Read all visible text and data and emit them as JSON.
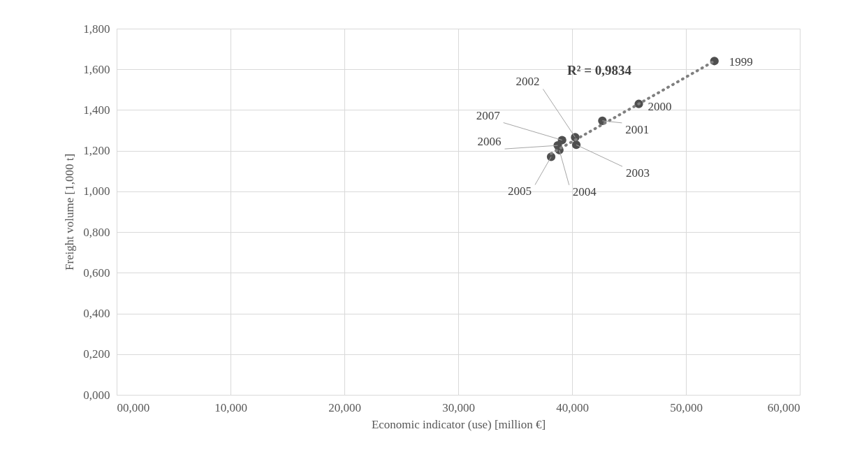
{
  "chart_data": {
    "type": "scatter",
    "xlabel": "Economic indicator (use) [million €]",
    "ylabel": "Freight volume [1,000 t]",
    "x": [
      52.5,
      45.86,
      42.66,
      40.27,
      40.37,
      38.88,
      38.16,
      38.74,
      39.12
    ],
    "series": [
      {
        "color": "#4f4f4f",
        "values": [
          1.641,
          1.43,
          1.347,
          1.266,
          1.229,
          1.203,
          1.17,
          1.226,
          1.252
        ]
      },
      {
        "type": "line",
        "x": [
          38.16,
          52.5
        ],
        "values": [
          1.186,
          1.641
        ],
        "color": "#7f7f7f",
        "line_style": "dotted",
        "marker": "none"
      }
    ],
    "xlim": [
      0,
      60
    ],
    "xticks": [
      {
        "value": 0,
        "label": "00,000"
      },
      {
        "value": 10,
        "label": "10,000"
      },
      {
        "value": 20,
        "label": "20,000"
      },
      {
        "value": 30,
        "label": "30,000"
      },
      {
        "value": 40,
        "label": "40,000"
      },
      {
        "value": 50,
        "label": "50,000"
      },
      {
        "value": 60,
        "label": "60,000"
      }
    ],
    "ylim": [
      0,
      1.8
    ],
    "yticks": [
      {
        "value": 0,
        "label": "0,000"
      },
      {
        "value": 0.2,
        "label": "0,200"
      },
      {
        "value": 0.4,
        "label": "0,400"
      },
      {
        "value": 0.6,
        "label": "0,600"
      },
      {
        "value": 0.8,
        "label": "0,800"
      },
      {
        "value": 1.0,
        "label": "1,000"
      },
      {
        "value": 1.2,
        "label": "1,200"
      },
      {
        "value": 1.4,
        "label": "1,400"
      },
      {
        "value": 1.6,
        "label": "1,600"
      },
      {
        "value": 1.8,
        "label": "1,800"
      }
    ],
    "grid": true,
    "marker": "circle",
    "annotations": [
      "R² = 0,9834",
      {
        "text": "1999",
        "x": 52.5,
        "y": 1.641
      },
      {
        "text": "2000",
        "x": 45.86,
        "y": 1.43
      },
      {
        "text": "2001",
        "x": 42.66,
        "y": 1.347
      },
      {
        "text": "2002",
        "x": 40.27,
        "y": 1.266
      },
      {
        "text": "2003",
        "x": 40.37,
        "y": 1.229
      },
      {
        "text": "2004",
        "x": 38.88,
        "y": 1.203
      },
      {
        "text": "2005",
        "x": 38.16,
        "y": 1.17
      },
      {
        "text": "2006",
        "x": 38.74,
        "y": 1.226
      },
      {
        "text": "2007",
        "x": 39.12,
        "y": 1.252
      }
    ]
  }
}
